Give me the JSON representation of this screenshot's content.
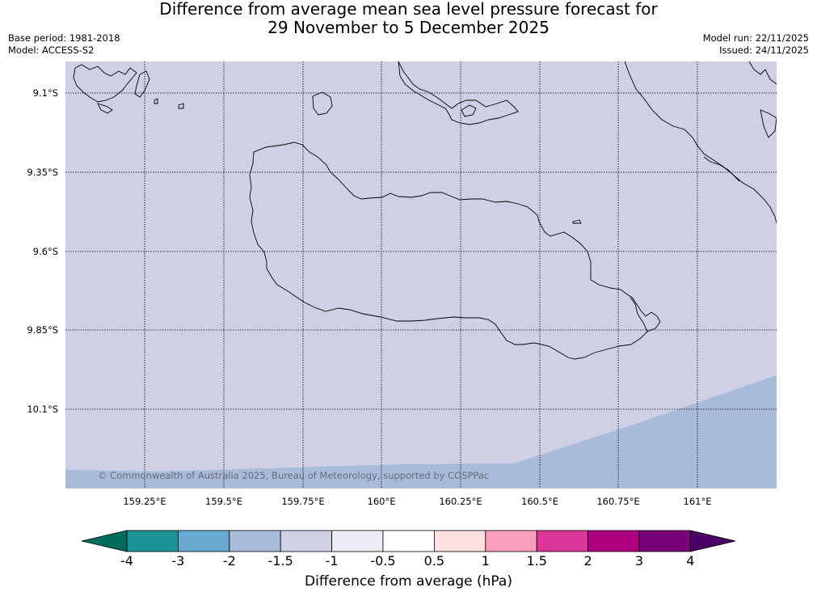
{
  "header": {
    "title_line1": "Difference from average mean sea level pressure forecast for",
    "title_line2": "29 November to 5 December 2025",
    "base_period": "Base period: 1981-2018",
    "model": "Model: ACCESS-S2",
    "model_run": "Model run: 22/11/2025",
    "issued": "Issued: 24/11/2025"
  },
  "map": {
    "copyright": "© Commonwealth of Australia 2025, Bureau of Meteorology, supported by COSPPac",
    "lat_labels": [
      "9.1°S",
      "9.35°S",
      "9.6°S",
      "9.85°S",
      "10.1°S"
    ],
    "lon_labels": [
      "159.25°E",
      "159.5°E",
      "159.75°E",
      "160°E",
      "160.25°E",
      "160.5°E",
      "160.75°E",
      "161°E"
    ],
    "fill_colors": {
      "range_-1.5_to_-1": "#cfd0e5",
      "range_-2_to_-1.5": "#a8bcd9"
    }
  },
  "colorbar": {
    "title": "Difference from average (hPa)",
    "tick_labels": [
      "-4",
      "-3",
      "-2",
      "-1.5",
      "-1",
      "-0.5",
      "0.5",
      "1",
      "1.5",
      "2",
      "3",
      "4"
    ],
    "colors": [
      "#1e9397",
      "#68a9d2",
      "#a8bcd9",
      "#cfd0e5",
      "#efebf4",
      "#ffffff",
      "#fde0e0",
      "#f8a0bb",
      "#dc359a",
      "#ae0080",
      "#7a007a"
    ],
    "under_color": "#006c5b",
    "over_color": "#4a0066"
  }
}
